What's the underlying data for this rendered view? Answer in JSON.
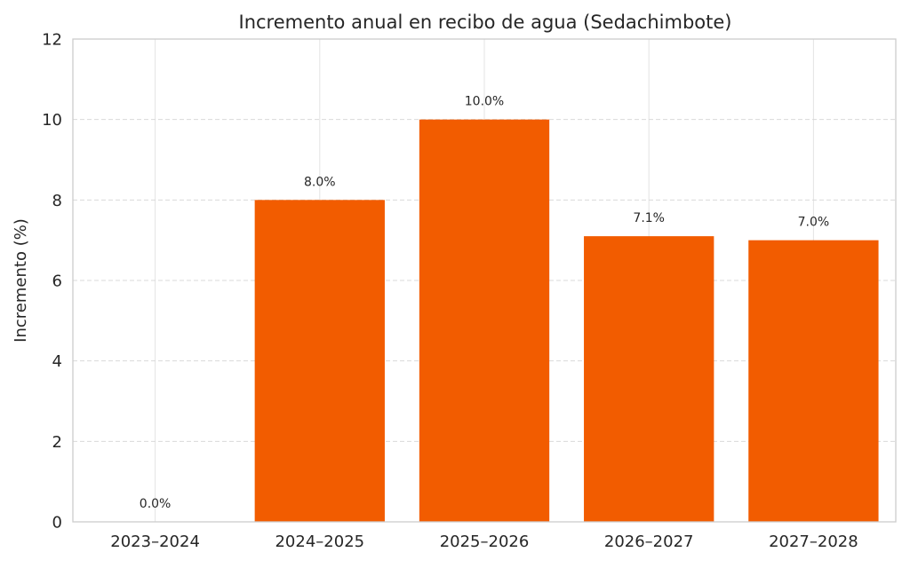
{
  "chart_data": {
    "type": "bar",
    "title": "Incremento anual en recibo de agua (Sedachimbote)",
    "xlabel": "",
    "ylabel": "Incremento (%)",
    "categories": [
      "2023–2024",
      "2024–2025",
      "2025–2026",
      "2026–2027",
      "2027–2028"
    ],
    "values": [
      0.0,
      8.0,
      10.0,
      7.1,
      7.0
    ],
    "data_labels": [
      "0.0%",
      "8.0%",
      "10.0%",
      "7.1%",
      "7.0%"
    ],
    "ylim": [
      0,
      12
    ],
    "yticks": [
      0,
      2,
      4,
      6,
      8,
      10,
      12
    ],
    "ytick_labels": [
      "0",
      "2",
      "4",
      "6",
      "8",
      "10",
      "12"
    ],
    "grid": true,
    "legend": false,
    "bar_color": "#f25c00"
  }
}
